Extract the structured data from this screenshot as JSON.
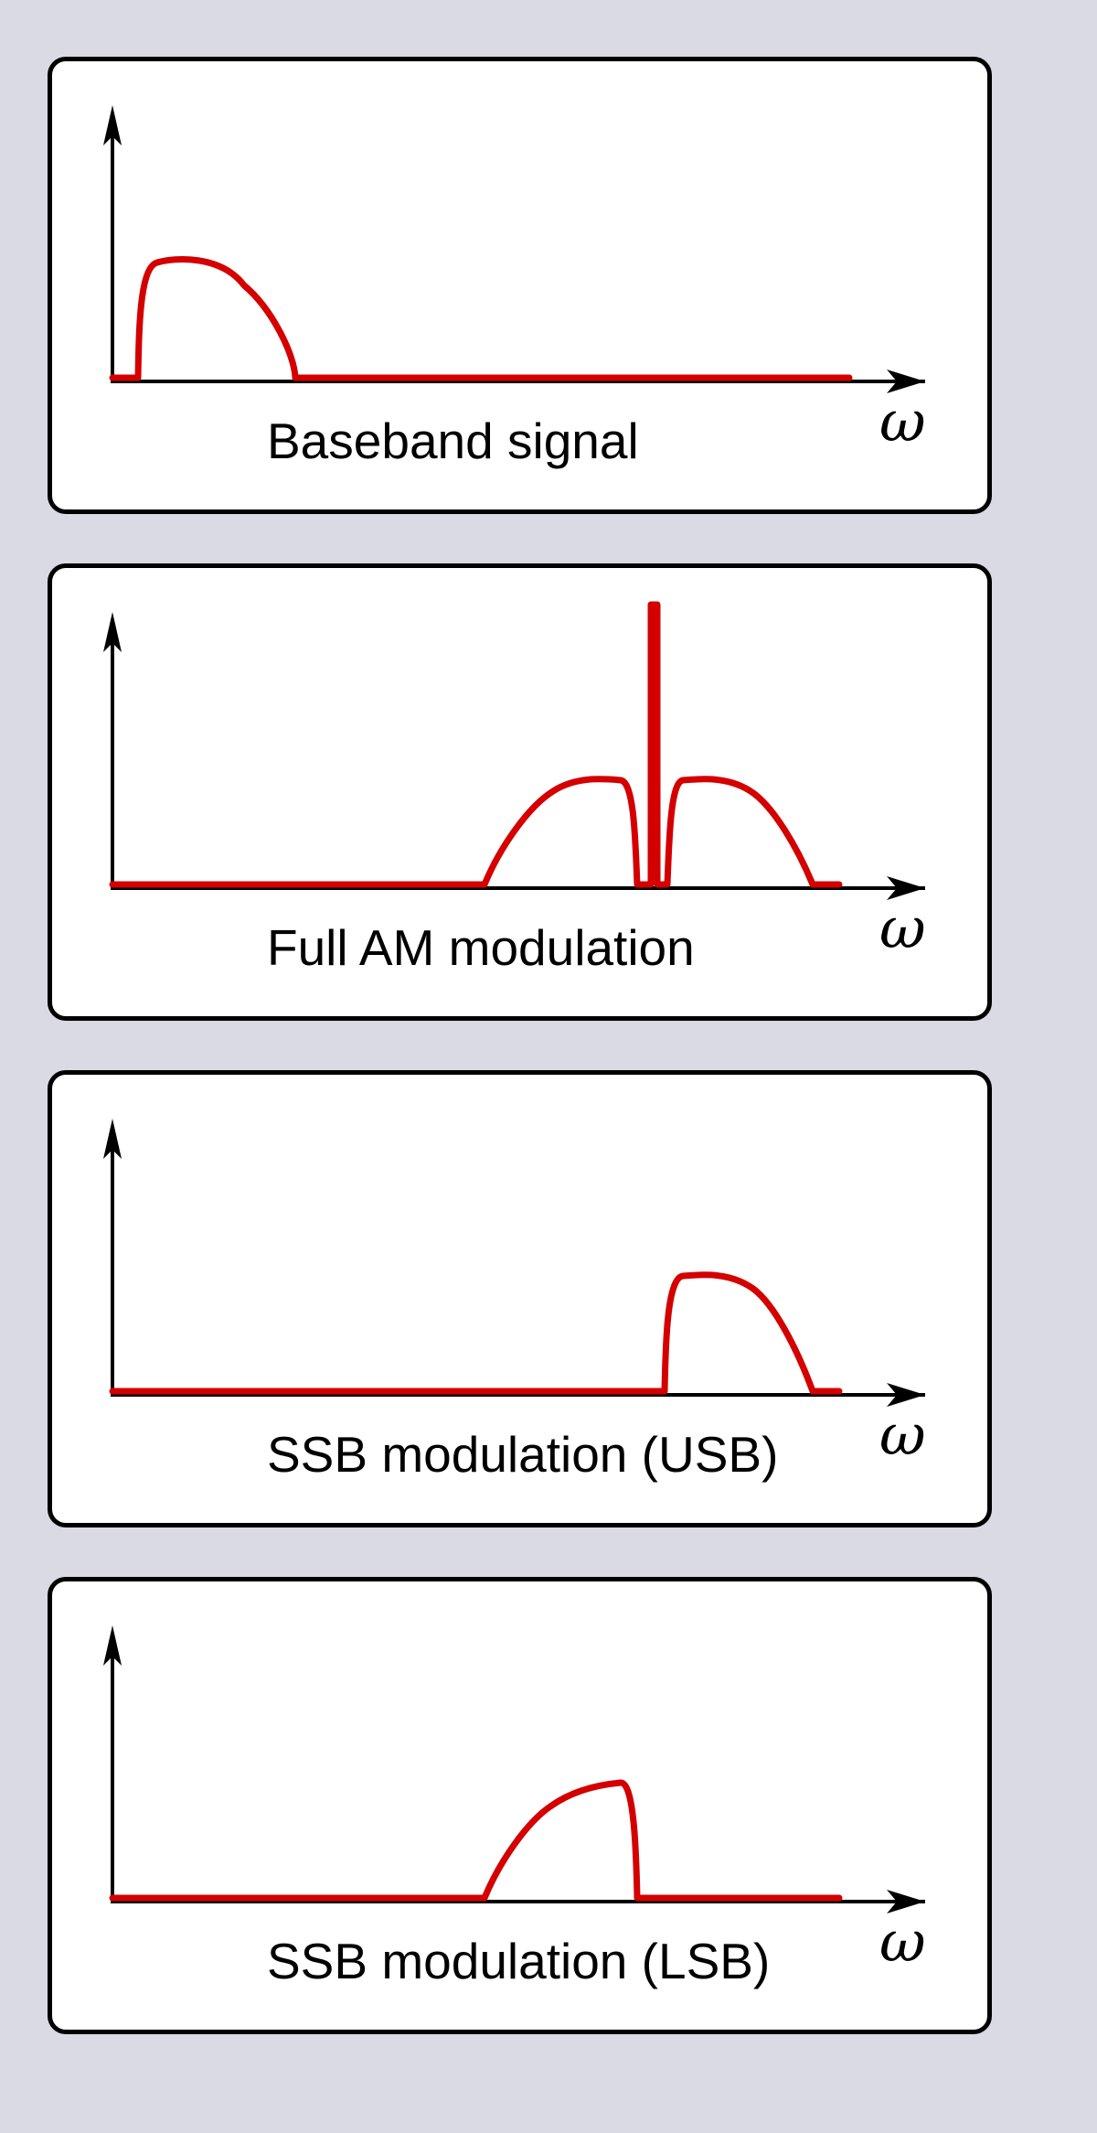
{
  "colors": {
    "background": "#d9dae3",
    "panel": "#ffffff",
    "axis": "#000000",
    "signal": "#d40000"
  },
  "axis_symbol": "ω",
  "panels": [
    {
      "label": "Baseband signal",
      "spectrum": "baseband"
    },
    {
      "label": "Full AM modulation",
      "spectrum": "full-am-with-carrier"
    },
    {
      "label": "SSB modulation (USB)",
      "spectrum": "upper-sideband"
    },
    {
      "label": "SSB modulation (LSB)",
      "spectrum": "lower-sideband"
    }
  ]
}
